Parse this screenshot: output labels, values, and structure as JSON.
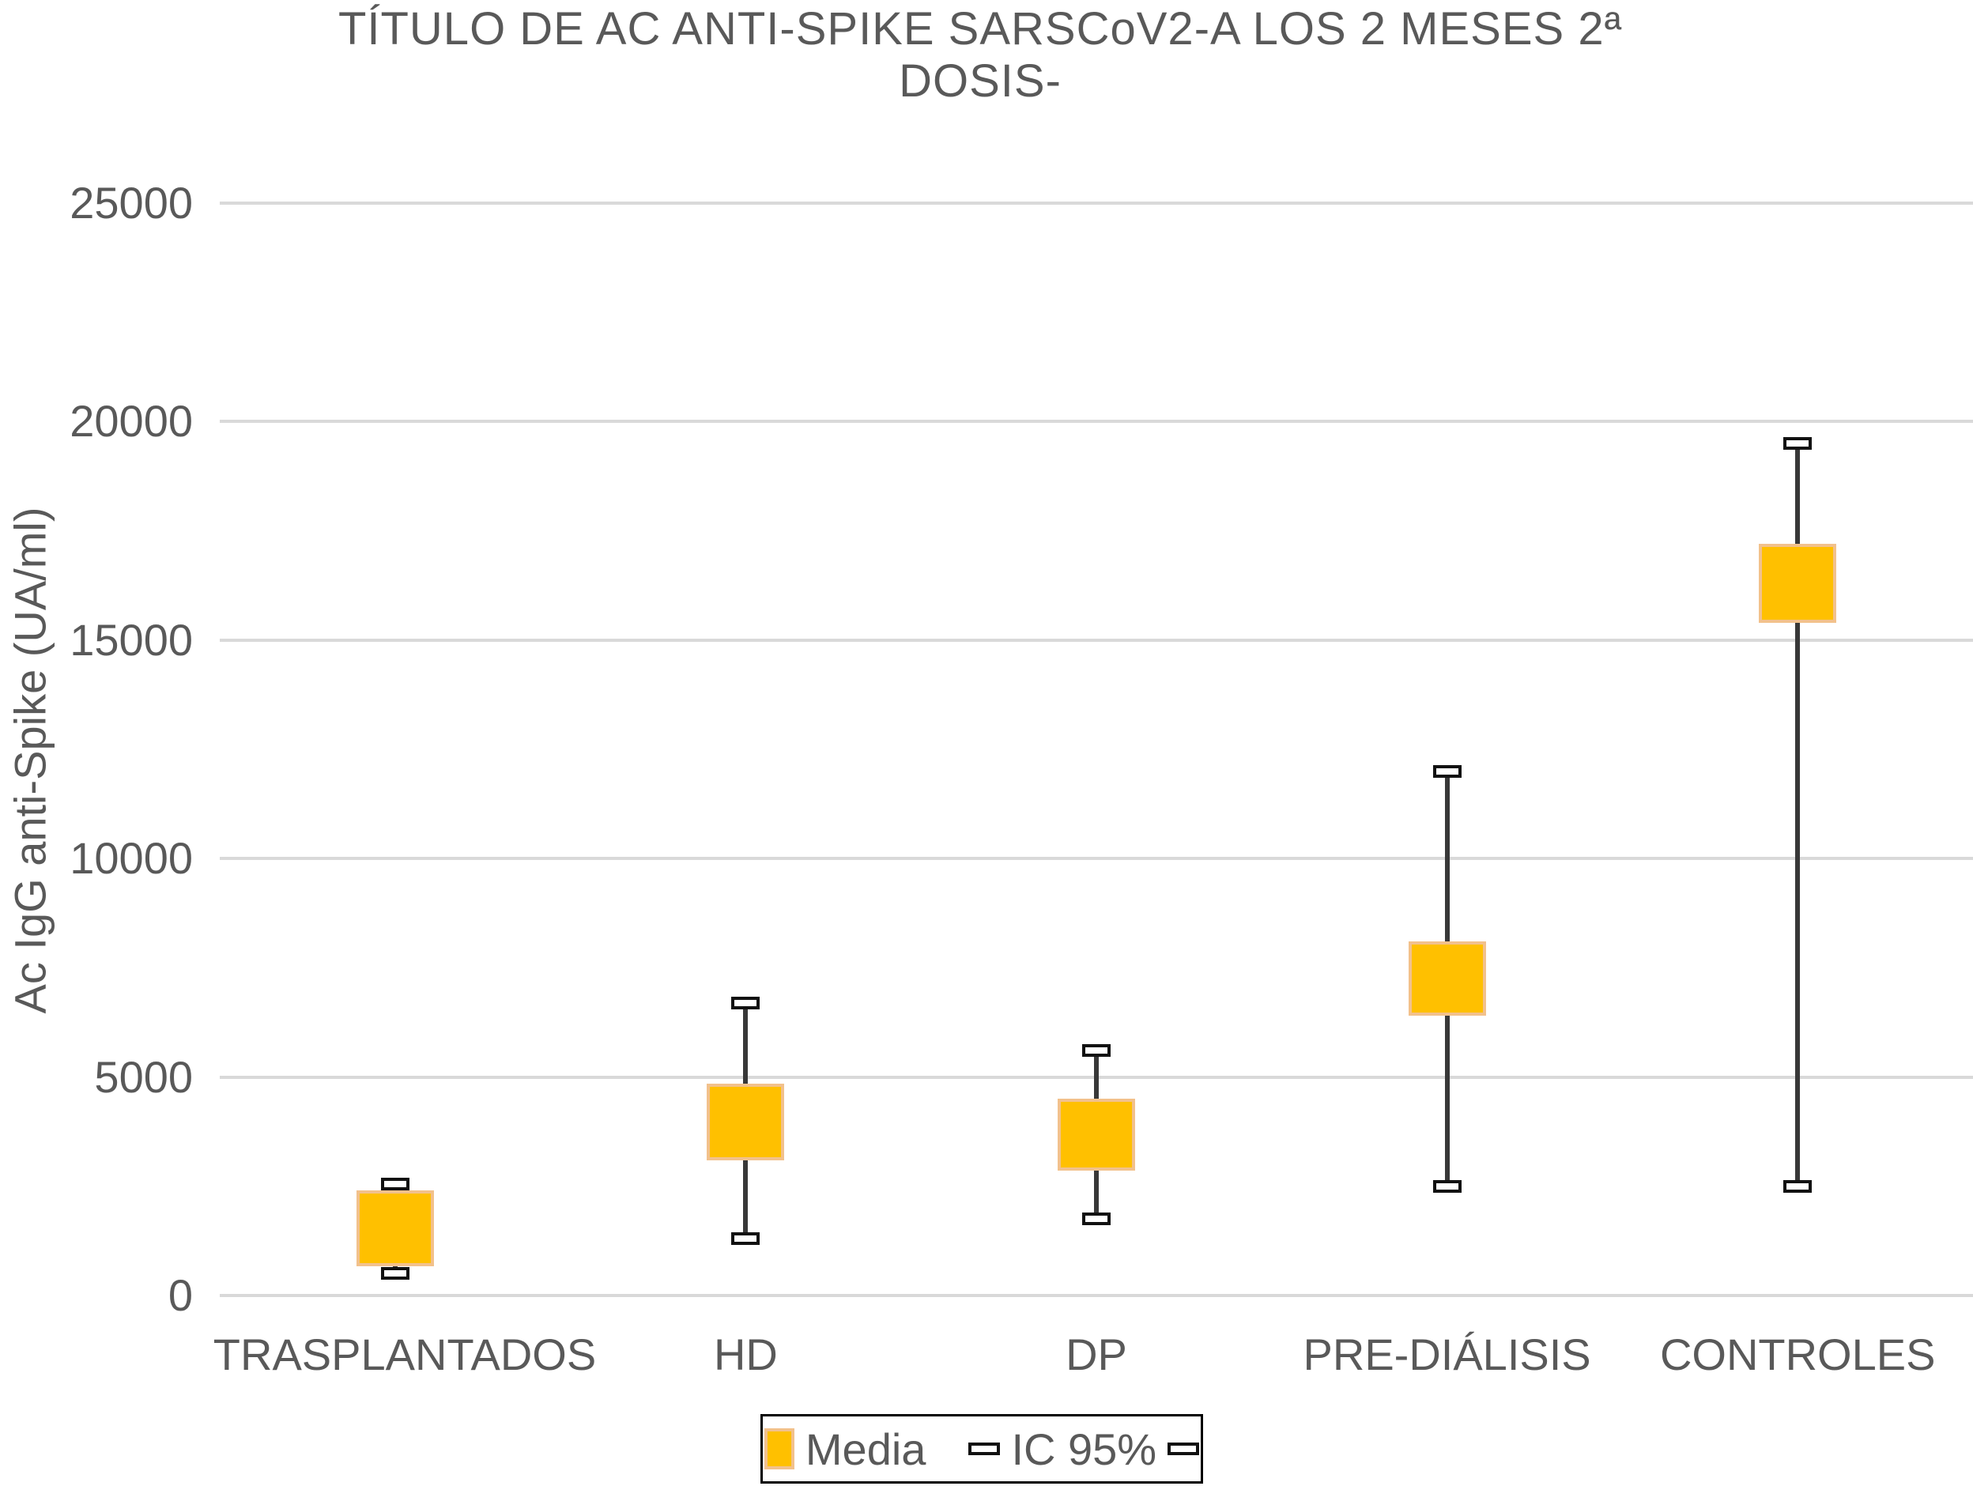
{
  "title": {
    "line1": "TÍTULO DE AC ANTI-SPIKE SARSCoV2-A LOS 2 MESES 2ª",
    "line2": "DOSIS-"
  },
  "y_axis": {
    "title": "Ac IgG anti-Spike (UA/ml)",
    "tick_labels": [
      "0",
      "5000",
      "10000",
      "15000",
      "20000",
      "25000"
    ]
  },
  "legend": {
    "media_label": "Media",
    "ci_label": "IC 95%"
  },
  "colors": {
    "box_fill": "#FFC000",
    "box_border": "#F2C18C",
    "whisker": "#383838",
    "cap_border": "#111111",
    "grid": "#D9D9D9",
    "text": "#595959"
  },
  "chart_data": {
    "type": "boxplot",
    "title": "TÍTULO DE AC ANTI-SPIKE SARSCoV2-A LOS 2 MESES 2ª DOSIS-",
    "ylabel": "Ac IgG anti-Spike (UA/ml)",
    "ylim": [
      0,
      25000
    ],
    "ytick_interval": 5000,
    "yticks": [
      0,
      5000,
      10000,
      15000,
      20000,
      25000
    ],
    "grid": "horizontal",
    "legend_position": "bottom",
    "categories": [
      "TRASPLANTADOS",
      "HD",
      "DP",
      "PRE-DIÁLISIS",
      "CONTROLES"
    ],
    "series": [
      {
        "name": "Media",
        "type": "box",
        "box_low": [
          670,
          3100,
          2850,
          6400,
          15400
        ],
        "box_high": [
          2400,
          4850,
          4500,
          8100,
          17200
        ]
      },
      {
        "name": "IC 95%",
        "type": "errorbar",
        "ci_low": [
          500,
          1300,
          1750,
          2500,
          2500
        ],
        "ci_high": [
          2550,
          6700,
          5600,
          12000,
          19500
        ]
      }
    ]
  }
}
